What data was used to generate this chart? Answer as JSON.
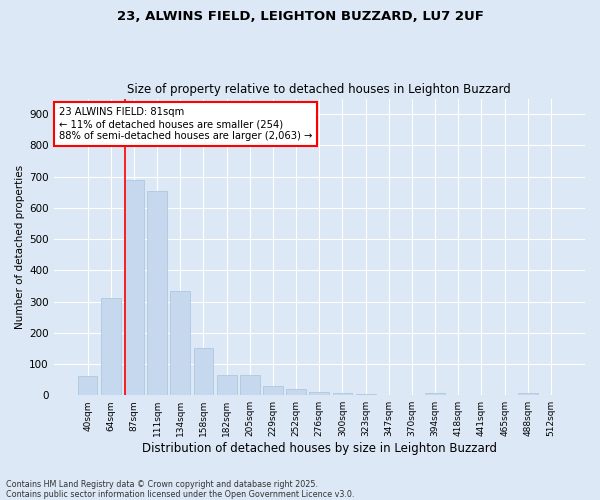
{
  "title1": "23, ALWINS FIELD, LEIGHTON BUZZARD, LU7 2UF",
  "title2": "Size of property relative to detached houses in Leighton Buzzard",
  "xlabel": "Distribution of detached houses by size in Leighton Buzzard",
  "ylabel": "Number of detached properties",
  "footer1": "Contains HM Land Registry data © Crown copyright and database right 2025.",
  "footer2": "Contains public sector information licensed under the Open Government Licence v3.0.",
  "categories": [
    "40sqm",
    "64sqm",
    "87sqm",
    "111sqm",
    "134sqm",
    "158sqm",
    "182sqm",
    "205sqm",
    "229sqm",
    "252sqm",
    "276sqm",
    "300sqm",
    "323sqm",
    "347sqm",
    "370sqm",
    "394sqm",
    "418sqm",
    "441sqm",
    "465sqm",
    "488sqm",
    "512sqm"
  ],
  "values": [
    60,
    310,
    690,
    655,
    335,
    150,
    65,
    65,
    30,
    20,
    10,
    8,
    3,
    1,
    0,
    6,
    0,
    0,
    0,
    8,
    0
  ],
  "bar_color": "#c5d8ed",
  "bar_edge_color": "#a8c4dc",
  "vline_x": 1.6,
  "annotation_text": "23 ALWINS FIELD: 81sqm\n← 11% of detached houses are smaller (254)\n88% of semi-detached houses are larger (2,063) →",
  "annotation_box_color": "white",
  "annotation_box_edge": "red",
  "vline_color": "red",
  "bg_color": "#dce8f5",
  "grid_color": "white",
  "ylim": [
    0,
    950
  ],
  "yticks": [
    0,
    100,
    200,
    300,
    400,
    500,
    600,
    700,
    800,
    900
  ]
}
